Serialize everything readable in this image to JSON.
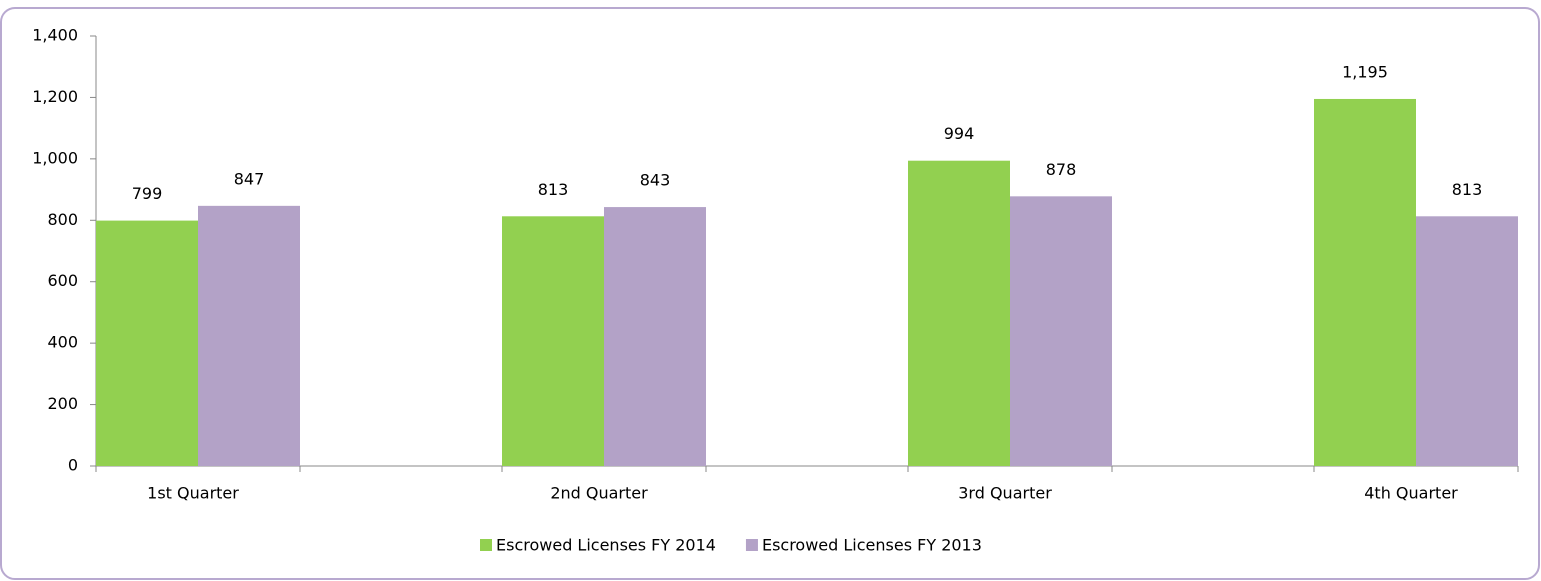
{
  "chart_data": {
    "type": "bar",
    "categories": [
      "1st Quarter",
      "2nd Quarter",
      "3rd Quarter",
      "4th Quarter"
    ],
    "series": [
      {
        "name": "Escrowed Licenses FY 2014",
        "color": "#92d050",
        "values": [
          799,
          813,
          994,
          1195
        ],
        "value_labels": [
          "799",
          "813",
          "994",
          "1,195"
        ]
      },
      {
        "name": "Escrowed Licenses FY 2013",
        "color": "#b3a2c7",
        "values": [
          847,
          843,
          878,
          813
        ]
      }
    ],
    "ylim": [
      0,
      1400
    ],
    "yticks": [
      0,
      200,
      400,
      600,
      800,
      {
        "value": 1000,
        "label": "1,000"
      },
      {
        "value": 1200,
        "label": "1,200"
      },
      {
        "value": 1400,
        "label": "1,400"
      }
    ],
    "grid": false,
    "legend": "bottom"
  }
}
